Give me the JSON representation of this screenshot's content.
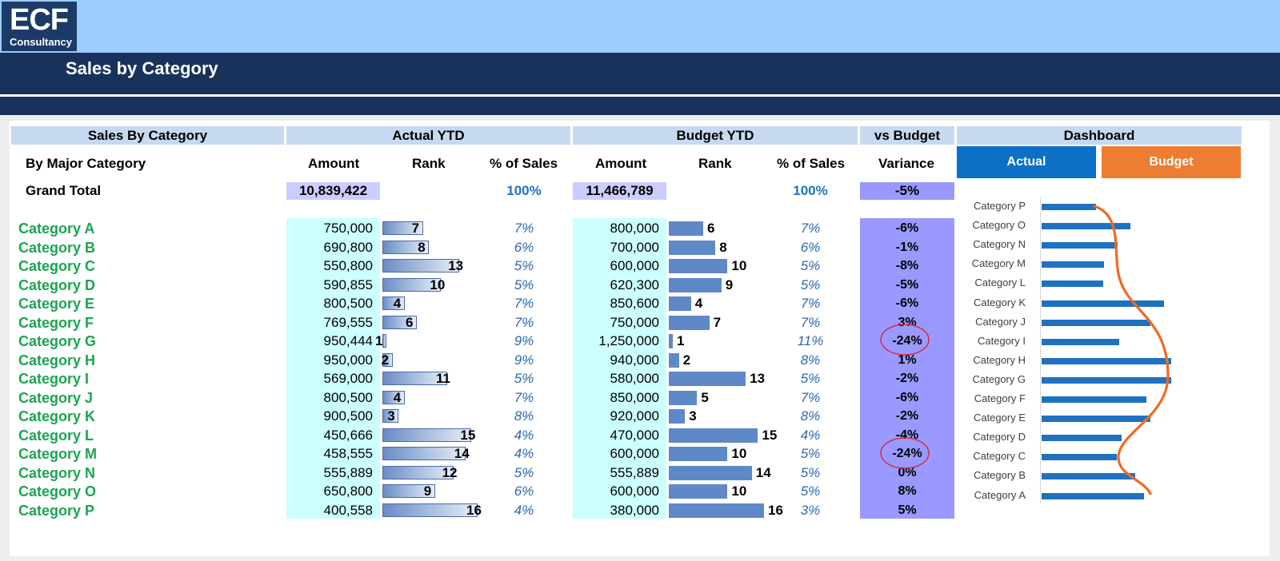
{
  "brand": {
    "logo_main": "ECF",
    "logo_sub": "Consultancy"
  },
  "page": {
    "title": "Sales by Category"
  },
  "headers": {
    "sales_by_category": "Sales By Category",
    "actual_ytd": "Actual YTD",
    "budget_ytd": "Budget YTD",
    "vs_budget": "vs Budget",
    "dashboard": "Dashboard"
  },
  "columns": {
    "by_major_category": "By Major Category",
    "actual_amount": "Amount",
    "actual_rank": "Rank",
    "actual_pct": "% of Sales",
    "budget_amount": "Amount",
    "budget_rank": "Rank",
    "budget_pct": "% of Sales",
    "variance": "Variance"
  },
  "dashboard_buttons": {
    "actual": "Actual",
    "budget": "Budget"
  },
  "grand_total": {
    "label": "Grand Total",
    "actual_amount": "10,839,422",
    "actual_pct": "100%",
    "budget_amount": "11,466,789",
    "budget_pct": "100%",
    "variance": "-5%"
  },
  "rows": [
    {
      "name": "Category A",
      "actual_amount": "750,000",
      "actual_rank": "7",
      "actual_pct": "7%",
      "budget_amount": "800,000",
      "budget_rank": "6",
      "budget_pct": "7%",
      "variance": "-6%"
    },
    {
      "name": "Category B",
      "actual_amount": "690,800",
      "actual_rank": "8",
      "actual_pct": "6%",
      "budget_amount": "700,000",
      "budget_rank": "8",
      "budget_pct": "6%",
      "variance": "-1%"
    },
    {
      "name": "Category C",
      "actual_amount": "550,800",
      "actual_rank": "13",
      "actual_pct": "5%",
      "budget_amount": "600,000",
      "budget_rank": "10",
      "budget_pct": "5%",
      "variance": "-8%"
    },
    {
      "name": "Category D",
      "actual_amount": "590,855",
      "actual_rank": "10",
      "actual_pct": "5%",
      "budget_amount": "620,300",
      "budget_rank": "9",
      "budget_pct": "5%",
      "variance": "-5%"
    },
    {
      "name": "Category E",
      "actual_amount": "800,500",
      "actual_rank": "4",
      "actual_pct": "7%",
      "budget_amount": "850,600",
      "budget_rank": "4",
      "budget_pct": "7%",
      "variance": "-6%"
    },
    {
      "name": "Category F",
      "actual_amount": "769,555",
      "actual_rank": "6",
      "actual_pct": "7%",
      "budget_amount": "750,000",
      "budget_rank": "7",
      "budget_pct": "7%",
      "variance": "3%"
    },
    {
      "name": "Category G",
      "actual_amount": "950,444",
      "actual_rank": "1",
      "actual_pct": "9%",
      "budget_amount": "1,250,000",
      "budget_rank": "1",
      "budget_pct": "11%",
      "variance": "-24%"
    },
    {
      "name": "Category H",
      "actual_amount": "950,000",
      "actual_rank": "2",
      "actual_pct": "9%",
      "budget_amount": "940,000",
      "budget_rank": "2",
      "budget_pct": "8%",
      "variance": "1%"
    },
    {
      "name": "Category I",
      "actual_amount": "569,000",
      "actual_rank": "11",
      "actual_pct": "5%",
      "budget_amount": "580,000",
      "budget_rank": "13",
      "budget_pct": "5%",
      "variance": "-2%"
    },
    {
      "name": "Category J",
      "actual_amount": "800,500",
      "actual_rank": "4",
      "actual_pct": "7%",
      "budget_amount": "850,000",
      "budget_rank": "5",
      "budget_pct": "7%",
      "variance": "-6%"
    },
    {
      "name": "Category K",
      "actual_amount": "900,500",
      "actual_rank": "3",
      "actual_pct": "8%",
      "budget_amount": "920,000",
      "budget_rank": "3",
      "budget_pct": "8%",
      "variance": "-2%"
    },
    {
      "name": "Category L",
      "actual_amount": "450,666",
      "actual_rank": "15",
      "actual_pct": "4%",
      "budget_amount": "470,000",
      "budget_rank": "15",
      "budget_pct": "4%",
      "variance": "-4%"
    },
    {
      "name": "Category M",
      "actual_amount": "458,555",
      "actual_rank": "14",
      "actual_pct": "4%",
      "budget_amount": "600,000",
      "budget_rank": "10",
      "budget_pct": "5%",
      "variance": "-24%"
    },
    {
      "name": "Category N",
      "actual_amount": "555,889",
      "actual_rank": "12",
      "actual_pct": "5%",
      "budget_amount": "555,889",
      "budget_rank": "14",
      "budget_pct": "5%",
      "variance": "0%"
    },
    {
      "name": "Category O",
      "actual_amount": "650,800",
      "actual_rank": "9",
      "actual_pct": "6%",
      "budget_amount": "600,000",
      "budget_rank": "10",
      "budget_pct": "5%",
      "variance": "8%"
    },
    {
      "name": "Category P",
      "actual_amount": "400,558",
      "actual_rank": "16",
      "actual_pct": "4%",
      "budget_amount": "380,000",
      "budget_rank": "16",
      "budget_pct": "3%",
      "variance": "5%"
    }
  ],
  "highlighted_variances": [
    "Category G",
    "Category M"
  ],
  "colors": {
    "band_light": "#9ccbfd",
    "band_dark": "#18325c",
    "header_fill": "#c6d9f0",
    "category_green": "#1aa550",
    "pct_blue": "#2d67b1",
    "variance_fill": "#9999ff",
    "actual_button": "#0b70c6",
    "budget_button": "#ec7d31",
    "chart_bar": "#1f72c2",
    "annotation_circle": "#d9222b",
    "annotation_curve": "#ef6a22"
  },
  "chart_data": {
    "type": "bar",
    "orientation": "horizontal",
    "categories": [
      "Category P",
      "Category O",
      "Category N",
      "Category M",
      "Category L",
      "Category K",
      "Category J",
      "Category I",
      "Category H",
      "Category G",
      "Category F",
      "Category E",
      "Category D",
      "Category C",
      "Category B",
      "Category A"
    ],
    "series": [
      {
        "values": [
          400558,
          650800,
          555889,
          458555,
          450666,
          900500,
          800500,
          569000,
          950000,
          950444,
          769555,
          800500,
          590855,
          550800,
          690800,
          750000
        ]
      }
    ],
    "xlim": [
      0,
      1000000
    ],
    "grid": false,
    "legend": "none"
  }
}
